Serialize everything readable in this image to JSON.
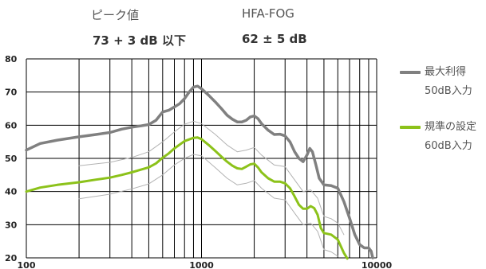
{
  "header": {
    "peak_label": "ピーク値",
    "peak_value": "73 + 3 dB 以下",
    "hfa_label": "HFA-FOG",
    "hfa_value": "62 ± 5 dB"
  },
  "legend": [
    {
      "line1": "最大利得",
      "line2": "50dB入力",
      "color": "#808080"
    },
    {
      "line1": "規準の設定",
      "line2": "60dB入力",
      "color": "#8cc21a"
    }
  ],
  "chart_data": {
    "type": "line",
    "xscale": "log",
    "xlim": [
      100,
      10000
    ],
    "ylim": [
      20,
      80
    ],
    "x_ticks": [
      100,
      1000,
      10000
    ],
    "x_tick_labels": [
      "100",
      "1000",
      "10000"
    ],
    "y_ticks": [
      20,
      30,
      40,
      50,
      60,
      70,
      80
    ],
    "y_tick_labels": [
      "20",
      "30",
      "40",
      "50",
      "60",
      "70",
      "80"
    ],
    "grid": true,
    "legend_position": "right",
    "series": [
      {
        "name": "最大利得 50dB入力",
        "color": "#808080",
        "width": 3.5,
        "points": [
          [
            100,
            52.5
          ],
          [
            120,
            54.5
          ],
          [
            150,
            55.5
          ],
          [
            200,
            56.5
          ],
          [
            250,
            57.2
          ],
          [
            300,
            57.8
          ],
          [
            350,
            58.8
          ],
          [
            400,
            59.4
          ],
          [
            450,
            59.8
          ],
          [
            500,
            60.2
          ],
          [
            550,
            61.5
          ],
          [
            600,
            64
          ],
          [
            650,
            64.5
          ],
          [
            700,
            65.5
          ],
          [
            750,
            66.5
          ],
          [
            800,
            68
          ],
          [
            850,
            70
          ],
          [
            900,
            71.5
          ],
          [
            950,
            71.8
          ],
          [
            1000,
            71
          ],
          [
            1100,
            69
          ],
          [
            1200,
            67
          ],
          [
            1300,
            65
          ],
          [
            1400,
            63
          ],
          [
            1500,
            61.8
          ],
          [
            1600,
            61
          ],
          [
            1700,
            61
          ],
          [
            1800,
            61.5
          ],
          [
            1900,
            62.5
          ],
          [
            2000,
            62.8
          ],
          [
            2100,
            62
          ],
          [
            2200,
            60.5
          ],
          [
            2400,
            58.5
          ],
          [
            2600,
            57.2
          ],
          [
            2800,
            57.3
          ],
          [
            3000,
            56.8
          ],
          [
            3200,
            55
          ],
          [
            3400,
            52
          ],
          [
            3600,
            50
          ],
          [
            3800,
            49
          ],
          [
            4000,
            51
          ],
          [
            4150,
            53
          ],
          [
            4300,
            52
          ],
          [
            4500,
            48
          ],
          [
            4700,
            44
          ],
          [
            5000,
            42
          ],
          [
            5500,
            41.8
          ],
          [
            6000,
            41
          ],
          [
            6500,
            37
          ],
          [
            7000,
            32
          ],
          [
            7500,
            27
          ],
          [
            8000,
            24
          ],
          [
            8500,
            23
          ],
          [
            9000,
            23
          ],
          [
            9300,
            22
          ],
          [
            9500,
            20
          ]
        ]
      },
      {
        "name": "規準の設定 60dB入力",
        "color": "#8cc21a",
        "width": 3,
        "points": [
          [
            100,
            40
          ],
          [
            120,
            41.2
          ],
          [
            150,
            42
          ],
          [
            200,
            42.8
          ],
          [
            250,
            43.6
          ],
          [
            300,
            44.2
          ],
          [
            350,
            45
          ],
          [
            400,
            45.8
          ],
          [
            450,
            46.6
          ],
          [
            500,
            47.3
          ],
          [
            550,
            48.5
          ],
          [
            600,
            50.2
          ],
          [
            650,
            51.5
          ],
          [
            700,
            53
          ],
          [
            800,
            55.2
          ],
          [
            900,
            56.2
          ],
          [
            950,
            56.3
          ],
          [
            1000,
            55.8
          ],
          [
            1100,
            54
          ],
          [
            1200,
            52.2
          ],
          [
            1300,
            50.5
          ],
          [
            1400,
            49
          ],
          [
            1500,
            47.8
          ],
          [
            1600,
            47
          ],
          [
            1700,
            46.8
          ],
          [
            1800,
            47.5
          ],
          [
            1900,
            48.2
          ],
          [
            2000,
            48.4
          ],
          [
            2100,
            47.3
          ],
          [
            2200,
            45.8
          ],
          [
            2400,
            44
          ],
          [
            2600,
            43
          ],
          [
            2800,
            43
          ],
          [
            3000,
            42.5
          ],
          [
            3200,
            41
          ],
          [
            3400,
            38.5
          ],
          [
            3600,
            36
          ],
          [
            3800,
            34.8
          ],
          [
            4000,
            34.8
          ],
          [
            4200,
            35.6
          ],
          [
            4400,
            35
          ],
          [
            4600,
            33
          ],
          [
            4800,
            29
          ],
          [
            5000,
            27.5
          ],
          [
            5500,
            27
          ],
          [
            6000,
            25.5
          ],
          [
            6500,
            21.5
          ],
          [
            6800,
            19.8
          ]
        ]
      },
      {
        "name": "",
        "color": "#b3b3b3",
        "width": 1,
        "points": [
          [
            200,
            47.8
          ],
          [
            300,
            48.8
          ],
          [
            400,
            50.3
          ],
          [
            500,
            52
          ],
          [
            600,
            55
          ],
          [
            700,
            58
          ],
          [
            800,
            60.3
          ],
          [
            900,
            61.2
          ],
          [
            1000,
            60.5
          ],
          [
            1200,
            57.2
          ],
          [
            1400,
            54
          ],
          [
            1600,
            52
          ],
          [
            1800,
            52.5
          ],
          [
            2000,
            53.3
          ],
          [
            2200,
            51
          ],
          [
            2600,
            48
          ],
          [
            3000,
            47.5
          ],
          [
            3400,
            43.5
          ],
          [
            3800,
            40
          ],
          [
            4200,
            40.5
          ],
          [
            4600,
            38
          ],
          [
            5000,
            32.5
          ],
          [
            5500,
            31.8
          ],
          [
            6000,
            30.5
          ],
          [
            6500,
            27
          ]
        ]
      },
      {
        "name": "",
        "color": "#b3b3b3",
        "width": 1,
        "points": [
          [
            200,
            37.8
          ],
          [
            300,
            39.2
          ],
          [
            400,
            40.8
          ],
          [
            500,
            42.3
          ],
          [
            600,
            45
          ],
          [
            700,
            48
          ],
          [
            800,
            50
          ],
          [
            900,
            51.2
          ],
          [
            1000,
            50.8
          ],
          [
            1200,
            47.2
          ],
          [
            1400,
            44
          ],
          [
            1600,
            42
          ],
          [
            1800,
            42.5
          ],
          [
            2000,
            43.3
          ],
          [
            2200,
            41
          ],
          [
            2600,
            38
          ],
          [
            3000,
            37.5
          ],
          [
            3400,
            33.5
          ],
          [
            3800,
            30
          ],
          [
            4200,
            30.5
          ],
          [
            4600,
            28
          ],
          [
            5000,
            22.5
          ],
          [
            5500,
            21.8
          ],
          [
            6000,
            20.5
          ]
        ]
      }
    ]
  }
}
